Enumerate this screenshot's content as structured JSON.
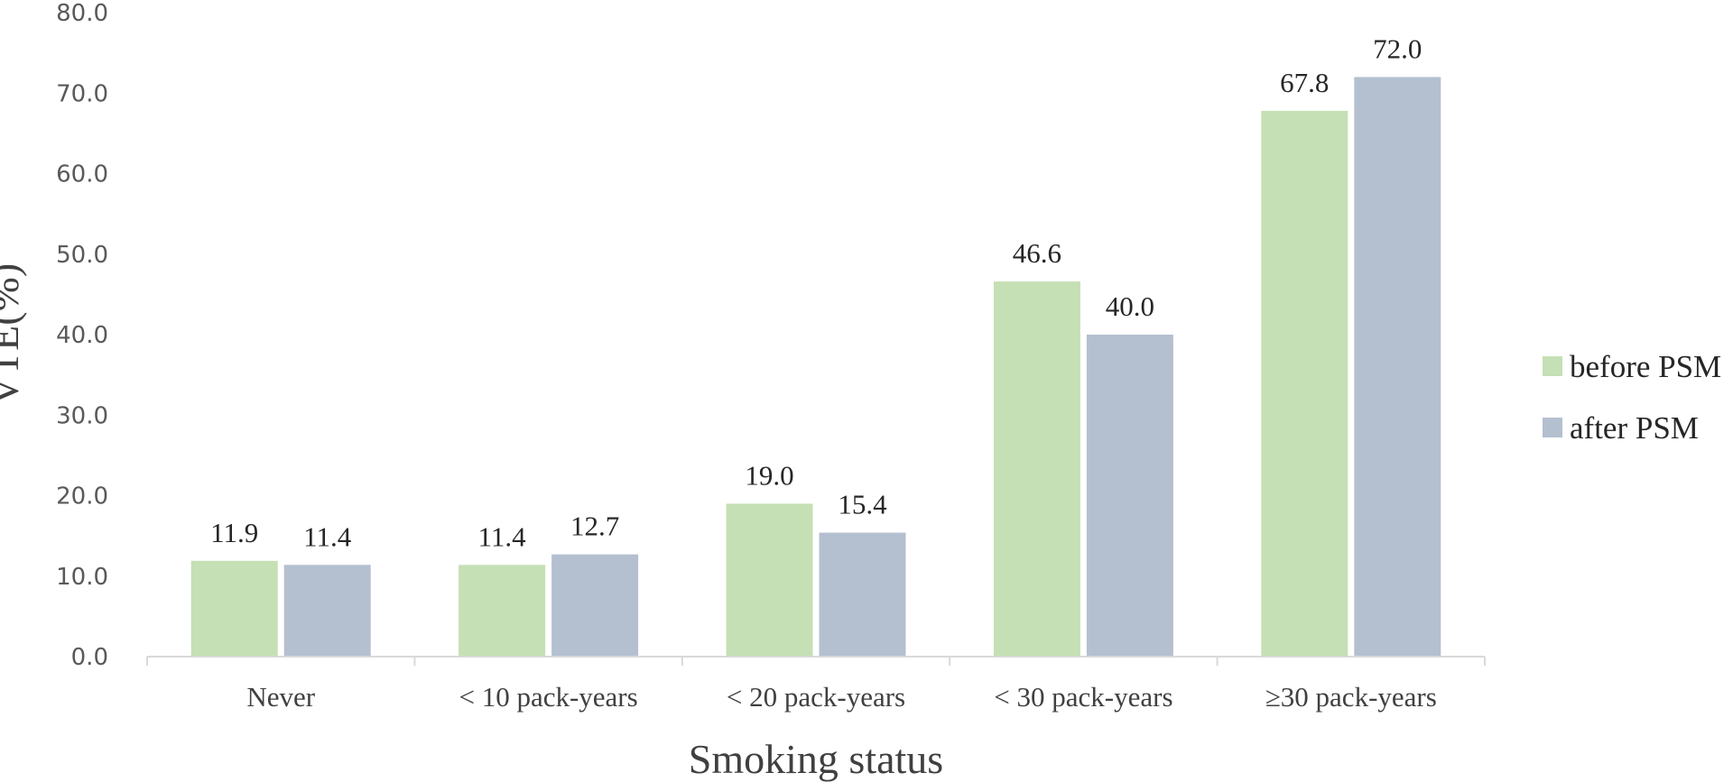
{
  "chart_data": {
    "type": "bar",
    "categories": [
      "Never",
      "< 10 pack-years",
      "< 20 pack-years",
      "< 30 pack-years",
      "≥30 pack-years"
    ],
    "series": [
      {
        "name": "before PSM",
        "values": [
          11.9,
          11.4,
          19.0,
          46.6,
          67.8
        ],
        "color": "#c5e0b4"
      },
      {
        "name": "after PSM",
        "values": [
          11.4,
          12.7,
          15.4,
          40.0,
          72.0
        ],
        "color": "#b4c0d0"
      }
    ],
    "xlabel": "Smoking status",
    "ylabel": "VTE(%)",
    "ylim": [
      0,
      80
    ],
    "yticks": [
      0,
      10,
      20,
      30,
      40,
      50,
      60,
      70,
      80
    ],
    "tick_format_decimals": 1,
    "grid": false,
    "legend": "right"
  }
}
